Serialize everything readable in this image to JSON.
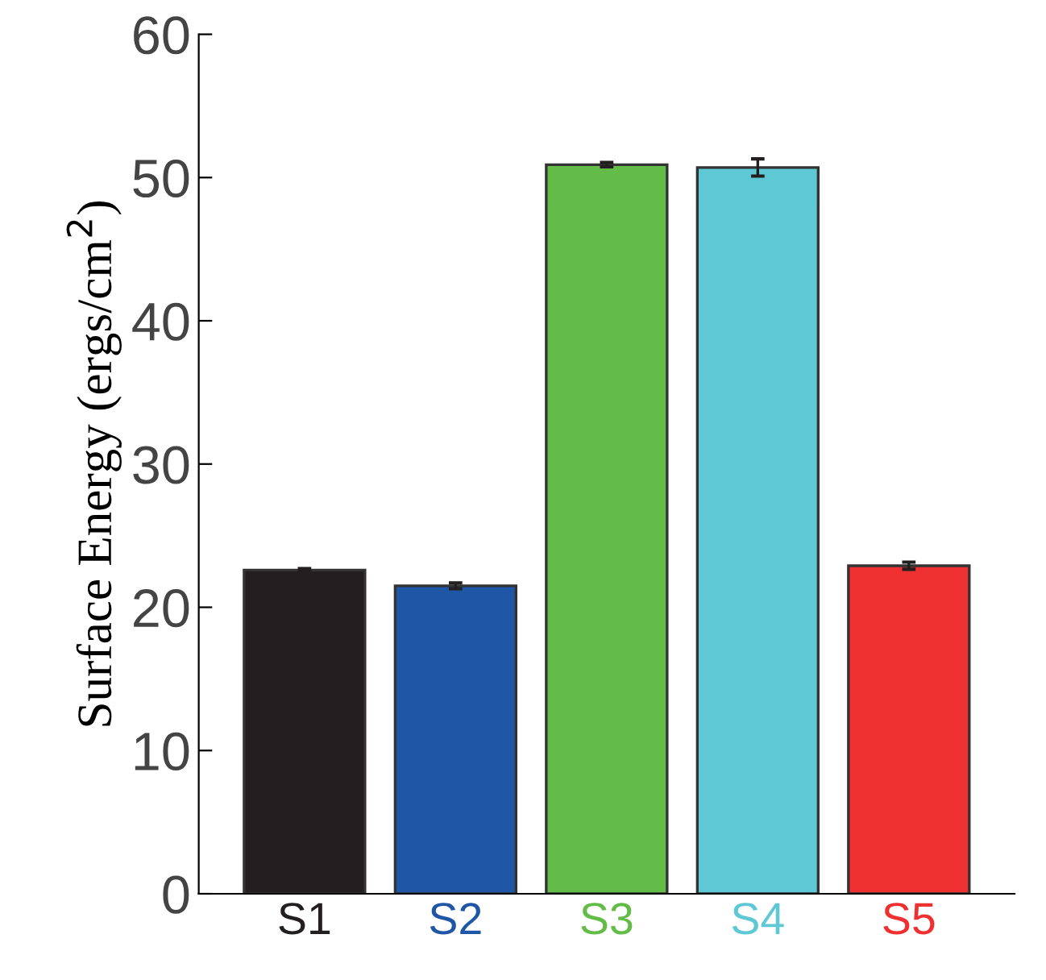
{
  "chart_data": {
    "type": "bar",
    "ylabel": "Surface Energy (ergs/cm$^{2}$)",
    "categories": [
      "S1",
      "S2",
      "S3",
      "S4",
      "S5"
    ],
    "values": [
      22.6,
      21.5,
      50.9,
      50.7,
      22.9
    ],
    "errors": [
      0.1,
      0.2,
      0.15,
      0.6,
      0.25
    ],
    "colors": [
      "#231f20",
      "#1f56a6",
      "#64bc48",
      "#5ec8d5",
      "#ee3030"
    ],
    "ylim": [
      0,
      60
    ],
    "yticks": [
      0,
      10,
      20,
      30,
      40,
      50,
      60
    ],
    "grid": false
  }
}
